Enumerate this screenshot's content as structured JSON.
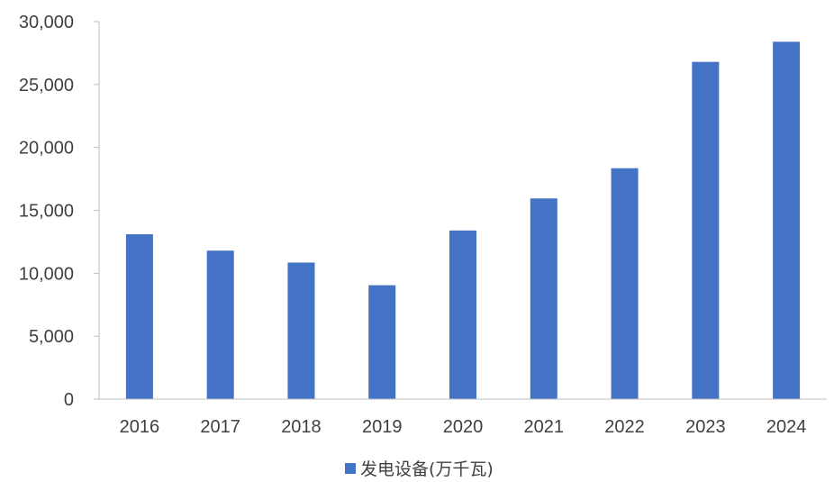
{
  "chart_data": {
    "type": "bar",
    "categories": [
      "2016",
      "2017",
      "2018",
      "2019",
      "2020",
      "2021",
      "2022",
      "2023",
      "2024"
    ],
    "series": [
      {
        "name": "发电设备(万千瓦)",
        "color": "#4472C4",
        "values": [
          13100,
          11800,
          10850,
          9050,
          13400,
          15950,
          18350,
          26800,
          28400
        ]
      }
    ],
    "yticks": [
      "0",
      "5,000",
      "10,000",
      "15,000",
      "20,000",
      "25,000",
      "30,000"
    ],
    "ylim": [
      0,
      30000
    ],
    "ystep": 5000,
    "grid": false,
    "legend": "bottom-center"
  }
}
